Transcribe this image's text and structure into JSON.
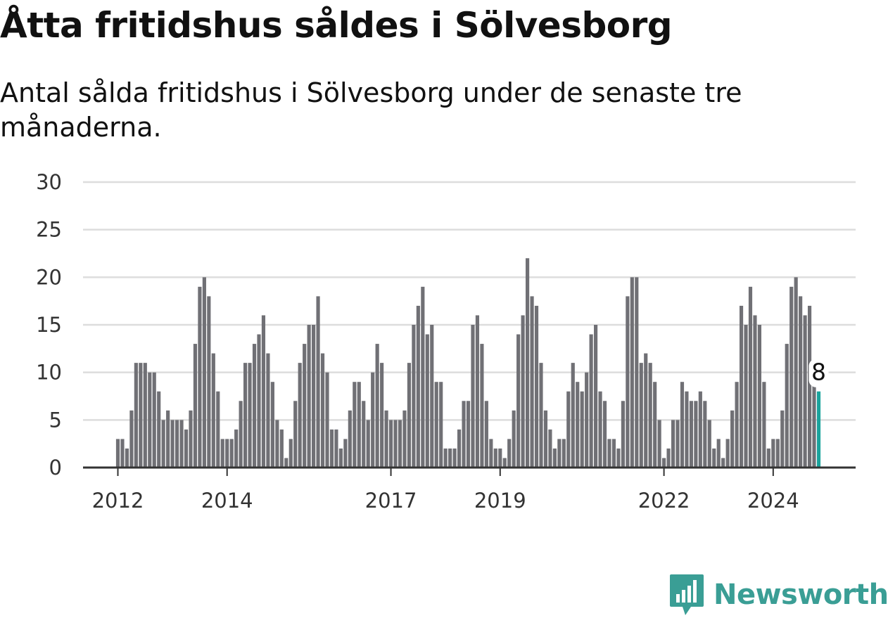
{
  "header": {
    "title": "Åtta fritidshus såldes i Sölvesborg",
    "subtitle": "Antal sålda fritidshus i Sölvesborg under de senaste tre månaderna."
  },
  "chart_data": {
    "type": "bar",
    "title": "Åtta fritidshus såldes i Sölvesborg",
    "subtitle": "Antal sålda fritidshus i Sölvesborg under de senaste tre månaderna.",
    "xlabel": "",
    "ylabel": "",
    "ylim": [
      0,
      30
    ],
    "yticks": [
      0,
      5,
      10,
      15,
      20,
      25,
      30
    ],
    "xticks": [
      "2012",
      "2014",
      "2017",
      "2019",
      "2022",
      "2024"
    ],
    "grid": "horizontal",
    "legend": "none",
    "bar_color": "#707075",
    "highlight_color": "#1aa39c",
    "series": [
      {
        "values": [
          3,
          3,
          2,
          6,
          11,
          11,
          11,
          10,
          10,
          8,
          5,
          6,
          5,
          5,
          5,
          4,
          6,
          13,
          19,
          20,
          18,
          12,
          8,
          3,
          3,
          3,
          4,
          7,
          11,
          11,
          13,
          14,
          16,
          12,
          9,
          5,
          4,
          1,
          3,
          7,
          11,
          13,
          15,
          15,
          18,
          12,
          10,
          4,
          4,
          2,
          3,
          6,
          9,
          9,
          7,
          5,
          10,
          13,
          11,
          6,
          5,
          5,
          5,
          6,
          11,
          15,
          17,
          19,
          14,
          15,
          9,
          9,
          2,
          2,
          2,
          4,
          7,
          7,
          15,
          16,
          13,
          7,
          3,
          2,
          2,
          1,
          3,
          6,
          14,
          16,
          22,
          18,
          17,
          11,
          6,
          4,
          2,
          3,
          3,
          8,
          11,
          9,
          8,
          10,
          14,
          15,
          8,
          7,
          3,
          3,
          2,
          7,
          18,
          20,
          20,
          11,
          12,
          11,
          9,
          5,
          1,
          2,
          5,
          5,
          9,
          8,
          7,
          7,
          8,
          7,
          5,
          2,
          3,
          1,
          3,
          6,
          9,
          17,
          15,
          19,
          16,
          15,
          9,
          2,
          3,
          3,
          6,
          13,
          19,
          20,
          18,
          16,
          17,
          9,
          8
        ]
      }
    ],
    "annotation": {
      "label": "8",
      "value": 8
    }
  },
  "logo": {
    "text": "Newsworthy",
    "icon": "bar-chart-badge-icon",
    "color": "#3a9e95"
  }
}
